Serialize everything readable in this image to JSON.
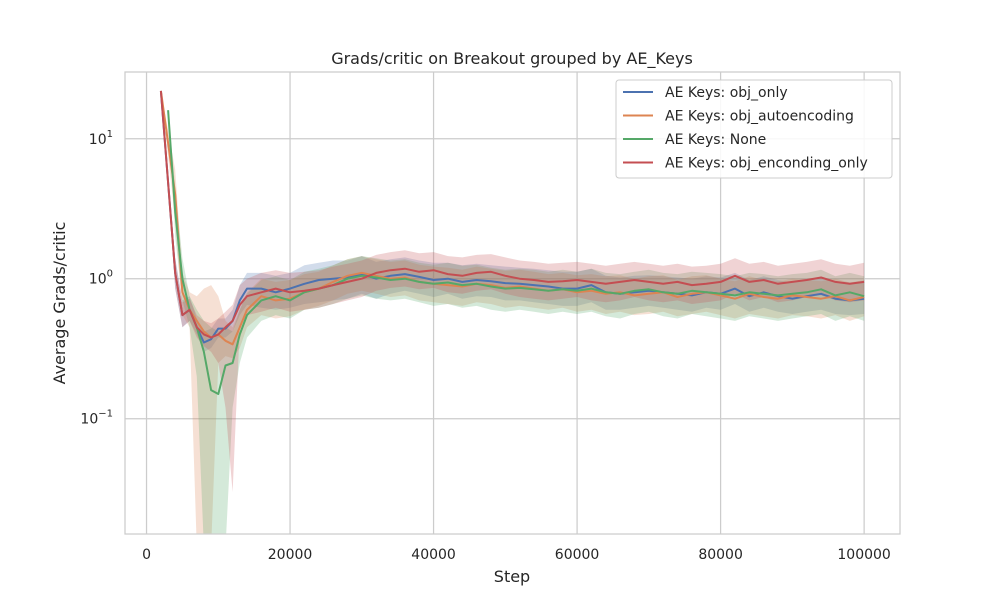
{
  "chart_data": {
    "type": "line",
    "title": "Grads/critic on Breakout grouped by AE_Keys",
    "xlabel": "Step",
    "ylabel": "Average Grads/critic",
    "yscale": "log",
    "xlim": [
      -3000,
      105000
    ],
    "ylim": [
      0.015,
      30
    ],
    "grid": true,
    "legend_position": "top-right",
    "x_ticks": [
      {
        "value": 0,
        "label": "0"
      },
      {
        "value": 20000,
        "label": "20000"
      },
      {
        "value": 40000,
        "label": "40000"
      },
      {
        "value": 60000,
        "label": "60000"
      },
      {
        "value": 80000,
        "label": "80000"
      },
      {
        "value": 100000,
        "label": "100000"
      }
    ],
    "y_ticks": [
      {
        "value": 10,
        "base": "10",
        "exp": "1"
      },
      {
        "value": 1,
        "base": "10",
        "exp": "0"
      },
      {
        "value": 0.1,
        "base": "10",
        "exp": "−1"
      }
    ],
    "series": [
      {
        "name": "AE Keys: obj_only",
        "color": "#4c72b0",
        "x": [
          2000,
          4000,
          5000,
          6000,
          7000,
          8000,
          9000,
          10000,
          11000,
          12000,
          13000,
          14000,
          16000,
          18000,
          20000,
          22000,
          24000,
          26000,
          28000,
          30000,
          32000,
          34000,
          36000,
          38000,
          40000,
          42000,
          44000,
          46000,
          48000,
          50000,
          52000,
          54000,
          56000,
          58000,
          60000,
          62000,
          64000,
          66000,
          68000,
          70000,
          72000,
          74000,
          76000,
          78000,
          80000,
          82000,
          84000,
          86000,
          88000,
          90000,
          92000,
          94000,
          96000,
          98000,
          100000
        ],
        "y": [
          22,
          1.1,
          0.55,
          0.6,
          0.45,
          0.35,
          0.37,
          0.44,
          0.44,
          0.5,
          0.7,
          0.85,
          0.85,
          0.8,
          0.85,
          0.92,
          0.98,
          1.0,
          1.02,
          1.08,
          1.0,
          1.05,
          1.08,
          1.03,
          0.98,
          1.0,
          0.95,
          0.98,
          0.96,
          0.93,
          0.92,
          0.9,
          0.88,
          0.85,
          0.85,
          0.9,
          0.8,
          0.78,
          0.8,
          0.82,
          0.8,
          0.78,
          0.76,
          0.8,
          0.78,
          0.85,
          0.75,
          0.8,
          0.75,
          0.72,
          0.75,
          0.78,
          0.72,
          0.7,
          0.72
        ],
        "lower": [
          22,
          0.85,
          0.45,
          0.5,
          0.4,
          0.3,
          0.32,
          0.38,
          0.38,
          0.42,
          0.55,
          0.65,
          0.62,
          0.6,
          0.62,
          0.66,
          0.68,
          0.7,
          0.72,
          0.78,
          0.72,
          0.78,
          0.82,
          0.78,
          0.74,
          0.78,
          0.72,
          0.75,
          0.74,
          0.7,
          0.7,
          0.68,
          0.66,
          0.64,
          0.64,
          0.68,
          0.6,
          0.6,
          0.62,
          0.64,
          0.62,
          0.6,
          0.58,
          0.62,
          0.6,
          0.66,
          0.58,
          0.62,
          0.58,
          0.56,
          0.58,
          0.6,
          0.56,
          0.55,
          0.56
        ],
        "upper": [
          22,
          1.4,
          0.7,
          0.75,
          0.52,
          0.42,
          0.44,
          0.52,
          0.52,
          0.6,
          0.9,
          1.1,
          1.1,
          1.05,
          1.1,
          1.25,
          1.3,
          1.35,
          1.35,
          1.45,
          1.32,
          1.38,
          1.42,
          1.35,
          1.3,
          1.3,
          1.25,
          1.28,
          1.25,
          1.22,
          1.2,
          1.18,
          1.15,
          1.12,
          1.12,
          1.18,
          1.05,
          1.02,
          1.05,
          1.06,
          1.04,
          1.02,
          1.0,
          1.04,
          1.02,
          1.1,
          0.98,
          1.04,
          0.98,
          0.94,
          0.98,
          1.0,
          0.94,
          0.92,
          0.95
        ]
      },
      {
        "name": "AE Keys: obj_autoencoding",
        "color": "#dd8452",
        "x": [
          2000,
          4000,
          5000,
          6000,
          7000,
          8000,
          9000,
          10000,
          11000,
          12000,
          13000,
          14000,
          16000,
          18000,
          20000,
          22000,
          24000,
          26000,
          28000,
          30000,
          32000,
          34000,
          36000,
          38000,
          40000,
          42000,
          44000,
          46000,
          48000,
          50000,
          52000,
          54000,
          56000,
          58000,
          60000,
          62000,
          64000,
          66000,
          68000,
          70000,
          72000,
          74000,
          76000,
          78000,
          80000,
          82000,
          84000,
          86000,
          88000,
          90000,
          92000,
          94000,
          96000,
          98000,
          100000
        ],
        "y": [
          22,
          4.0,
          0.8,
          0.6,
          0.5,
          0.42,
          0.38,
          0.4,
          0.36,
          0.34,
          0.45,
          0.6,
          0.75,
          0.7,
          0.72,
          0.8,
          0.85,
          0.95,
          1.05,
          1.1,
          1.05,
          1.0,
          1.02,
          0.95,
          0.92,
          0.9,
          0.88,
          0.92,
          0.9,
          0.86,
          0.88,
          0.85,
          0.82,
          0.84,
          0.8,
          0.82,
          0.78,
          0.8,
          0.76,
          0.78,
          0.8,
          0.74,
          0.78,
          0.8,
          0.76,
          0.72,
          0.78,
          0.74,
          0.72,
          0.76,
          0.74,
          0.72,
          0.75,
          0.7,
          0.74
        ],
        "lower": [
          22,
          2.6,
          0.55,
          0.45,
          0.012,
          0.012,
          0.012,
          0.25,
          0.28,
          0.27,
          0.32,
          0.45,
          0.55,
          0.52,
          0.54,
          0.6,
          0.64,
          0.7,
          0.78,
          0.82,
          0.78,
          0.74,
          0.76,
          0.7,
          0.68,
          0.66,
          0.64,
          0.68,
          0.66,
          0.62,
          0.64,
          0.62,
          0.6,
          0.62,
          0.58,
          0.6,
          0.56,
          0.58,
          0.55,
          0.56,
          0.58,
          0.54,
          0.56,
          0.58,
          0.55,
          0.52,
          0.56,
          0.54,
          0.52,
          0.55,
          0.54,
          0.52,
          0.55,
          0.5,
          0.54
        ],
        "upper": [
          22,
          6.0,
          1.1,
          0.8,
          0.75,
          0.85,
          0.9,
          0.75,
          0.5,
          0.45,
          0.6,
          0.8,
          1.0,
          0.95,
          0.98,
          1.08,
          1.12,
          1.25,
          1.38,
          1.45,
          1.38,
          1.32,
          1.35,
          1.26,
          1.22,
          1.2,
          1.16,
          1.22,
          1.18,
          1.14,
          1.16,
          1.12,
          1.08,
          1.1,
          1.06,
          1.08,
          1.04,
          1.06,
          1.0,
          1.04,
          1.06,
          0.98,
          1.04,
          1.06,
          1.0,
          0.96,
          1.04,
          0.98,
          0.96,
          1.0,
          0.98,
          0.96,
          1.0,
          0.94,
          0.98
        ]
      },
      {
        "name": "AE Keys: None",
        "color": "#55a868",
        "x": [
          3000,
          4000,
          5000,
          6000,
          7000,
          8000,
          9000,
          10000,
          11000,
          12000,
          13000,
          14000,
          16000,
          18000,
          20000,
          22000,
          24000,
          26000,
          28000,
          30000,
          32000,
          34000,
          36000,
          38000,
          40000,
          42000,
          44000,
          46000,
          48000,
          50000,
          52000,
          54000,
          56000,
          58000,
          60000,
          62000,
          64000,
          66000,
          68000,
          70000,
          72000,
          74000,
          76000,
          78000,
          80000,
          82000,
          84000,
          86000,
          88000,
          90000,
          92000,
          94000,
          96000,
          98000,
          100000
        ],
        "y": [
          16,
          3.0,
          1.0,
          0.6,
          0.45,
          0.3,
          0.16,
          0.15,
          0.24,
          0.25,
          0.4,
          0.55,
          0.7,
          0.75,
          0.7,
          0.8,
          0.85,
          0.9,
          1.0,
          1.05,
          1.02,
          0.98,
          1.0,
          0.95,
          0.92,
          0.94,
          0.9,
          0.92,
          0.88,
          0.85,
          0.86,
          0.84,
          0.82,
          0.84,
          0.82,
          0.85,
          0.8,
          0.78,
          0.82,
          0.84,
          0.8,
          0.78,
          0.82,
          0.8,
          0.78,
          0.76,
          0.8,
          0.78,
          0.76,
          0.78,
          0.8,
          0.84,
          0.76,
          0.8,
          0.75
        ],
        "lower": [
          16,
          2.0,
          0.7,
          0.45,
          0.2,
          0.012,
          0.012,
          0.012,
          0.012,
          0.12,
          0.25,
          0.38,
          0.5,
          0.55,
          0.52,
          0.6,
          0.62,
          0.66,
          0.72,
          0.76,
          0.72,
          0.7,
          0.72,
          0.68,
          0.64,
          0.66,
          0.62,
          0.64,
          0.6,
          0.58,
          0.6,
          0.58,
          0.56,
          0.58,
          0.56,
          0.58,
          0.54,
          0.52,
          0.56,
          0.58,
          0.54,
          0.52,
          0.56,
          0.54,
          0.52,
          0.5,
          0.54,
          0.52,
          0.5,
          0.52,
          0.54,
          0.56,
          0.5,
          0.54,
          0.5
        ],
        "upper": [
          16,
          4.5,
          1.4,
          0.75,
          0.6,
          0.5,
          0.45,
          0.42,
          0.45,
          0.42,
          0.6,
          0.78,
          0.98,
          1.04,
          0.98,
          1.12,
          1.18,
          1.25,
          1.38,
          1.45,
          1.4,
          1.35,
          1.38,
          1.3,
          1.26,
          1.3,
          1.24,
          1.26,
          1.2,
          1.16,
          1.18,
          1.16,
          1.12,
          1.16,
          1.12,
          1.18,
          1.1,
          1.08,
          1.12,
          1.16,
          1.1,
          1.08,
          1.12,
          1.1,
          1.08,
          1.04,
          1.1,
          1.08,
          1.04,
          1.08,
          1.1,
          1.16,
          1.04,
          1.1,
          1.04
        ]
      },
      {
        "name": "AE Keys: obj_enconding_only",
        "color": "#c44e52",
        "x": [
          2000,
          4000,
          5000,
          6000,
          7000,
          8000,
          9000,
          10000,
          11000,
          12000,
          13000,
          14000,
          16000,
          18000,
          20000,
          22000,
          24000,
          26000,
          28000,
          30000,
          32000,
          34000,
          36000,
          38000,
          40000,
          42000,
          44000,
          46000,
          48000,
          50000,
          52000,
          54000,
          56000,
          58000,
          60000,
          62000,
          64000,
          66000,
          68000,
          70000,
          72000,
          74000,
          76000,
          78000,
          80000,
          82000,
          84000,
          86000,
          88000,
          90000,
          92000,
          94000,
          96000,
          98000,
          100000
        ],
        "y": [
          22,
          1.1,
          0.55,
          0.6,
          0.45,
          0.4,
          0.38,
          0.4,
          0.45,
          0.5,
          0.65,
          0.75,
          0.8,
          0.85,
          0.8,
          0.82,
          0.85,
          0.9,
          0.95,
          1.0,
          1.1,
          1.15,
          1.18,
          1.12,
          1.15,
          1.08,
          1.05,
          1.1,
          1.12,
          1.05,
          1.0,
          0.98,
          0.95,
          0.96,
          0.98,
          0.95,
          0.92,
          0.95,
          0.98,
          0.95,
          0.92,
          0.95,
          0.9,
          0.92,
          0.95,
          1.05,
          0.95,
          0.98,
          0.92,
          0.95,
          0.98,
          1.02,
          0.95,
          0.92,
          0.95
        ],
        "lower": [
          22,
          0.85,
          0.45,
          0.5,
          0.38,
          0.33,
          0.3,
          0.25,
          0.12,
          0.03,
          0.45,
          0.55,
          0.58,
          0.62,
          0.58,
          0.6,
          0.62,
          0.66,
          0.7,
          0.74,
          0.82,
          0.86,
          0.88,
          0.84,
          0.86,
          0.8,
          0.78,
          0.82,
          0.84,
          0.78,
          0.74,
          0.72,
          0.7,
          0.72,
          0.74,
          0.7,
          0.68,
          0.7,
          0.74,
          0.7,
          0.68,
          0.7,
          0.66,
          0.68,
          0.7,
          0.78,
          0.7,
          0.74,
          0.68,
          0.7,
          0.74,
          0.76,
          0.7,
          0.68,
          0.7
        ],
        "upper": [
          22,
          1.4,
          0.68,
          0.72,
          0.55,
          0.5,
          0.48,
          0.52,
          0.58,
          0.65,
          0.9,
          1.0,
          1.1,
          1.15,
          1.1,
          1.12,
          1.15,
          1.22,
          1.28,
          1.35,
          1.48,
          1.55,
          1.6,
          1.52,
          1.55,
          1.45,
          1.42,
          1.48,
          1.5,
          1.42,
          1.35,
          1.32,
          1.28,
          1.3,
          1.32,
          1.28,
          1.24,
          1.28,
          1.32,
          1.28,
          1.24,
          1.28,
          1.22,
          1.24,
          1.28,
          1.4,
          1.28,
          1.32,
          1.24,
          1.28,
          1.32,
          1.38,
          1.28,
          1.24,
          1.3
        ]
      }
    ]
  },
  "colors": {
    "grid": "#cccccc",
    "axes_edge": "#cccccc",
    "text": "#262626"
  }
}
